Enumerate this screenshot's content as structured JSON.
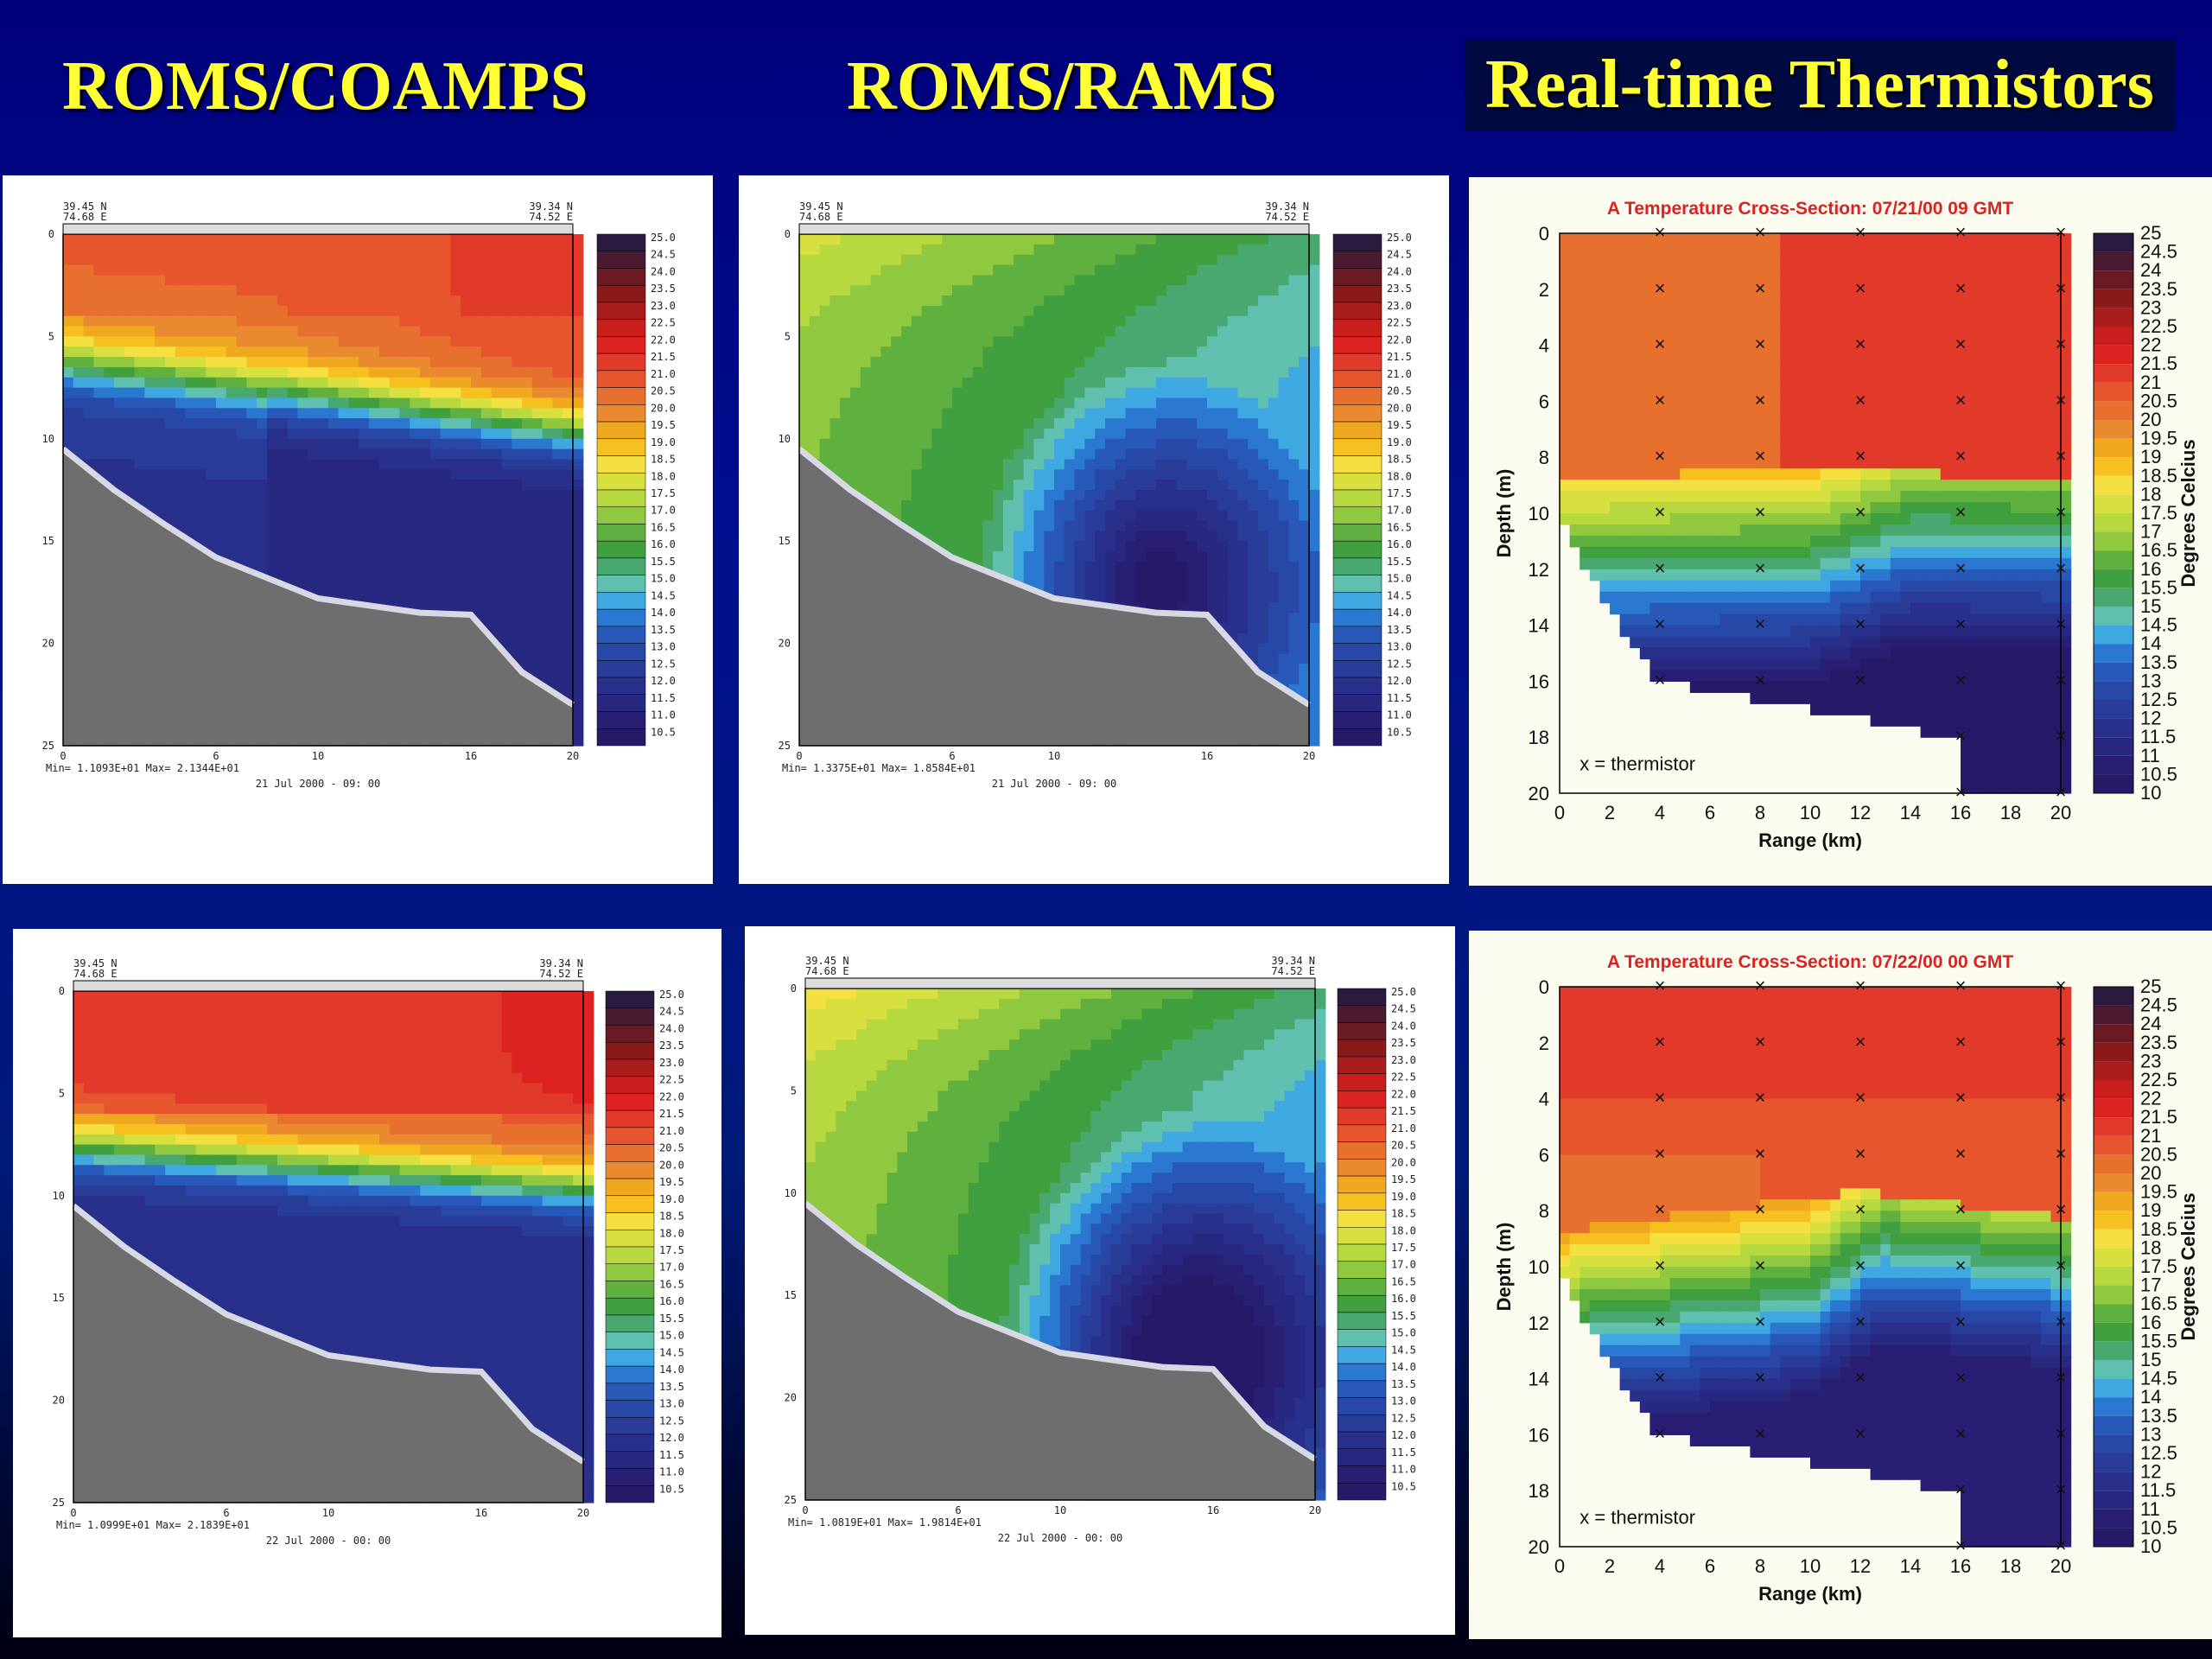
{
  "headers": [
    "ROMS/COAMPS",
    "ROMS/RAMS",
    "Real-time Thermistors"
  ],
  "model_colorbar": [
    "25.0",
    "24.5",
    "24.0",
    "23.5",
    "23.0",
    "22.5",
    "22.0",
    "21.5",
    "21.0",
    "20.5",
    "20.0",
    "19.5",
    "19.0",
    "18.5",
    "18.0",
    "17.5",
    "17.0",
    "16.5",
    "16.0",
    "15.5",
    "15.0",
    "14.5",
    "14.0",
    "13.5",
    "13.0",
    "12.5",
    "12.0",
    "11.5",
    "11.0",
    "10.5"
  ],
  "thermo_colorbar": [
    "25",
    "24.5",
    "24",
    "23.5",
    "23",
    "22.5",
    "22",
    "21.5",
    "21",
    "20.5",
    "20",
    "19.5",
    "19",
    "18.5",
    "18",
    "17.5",
    "17",
    "16.5",
    "16",
    "15.5",
    "15",
    "14.5",
    "14",
    "13.5",
    "13",
    "12.5",
    "12",
    "11.5",
    "11",
    "10.5",
    "10"
  ],
  "colors": {
    "palette": [
      "#2a1a40",
      "#4a1a30",
      "#6a1a22",
      "#8a1a1a",
      "#a81c1c",
      "#c81e1e",
      "#dd2222",
      "#e23a2a",
      "#e6552e",
      "#e8702f",
      "#ea8a30",
      "#f0a820",
      "#f5c020",
      "#f4e040",
      "#d8e040",
      "#b8d840",
      "#90c840",
      "#60b040",
      "#40a040",
      "#48a870",
      "#60c0b0",
      "#40a8e0",
      "#2a78d0",
      "#2858b8",
      "#2848a8",
      "#283c98",
      "#28308c",
      "#282880",
      "#281e74",
      "#281868"
    ],
    "ground": "#6e6e6e",
    "ground_edge": "#d8d8e4",
    "heading": "#ffff33",
    "thermo_title": "#dd2222"
  },
  "chart_data": [
    {
      "type": "heatmap",
      "model": "ROMS/COAMPS",
      "date": "21 Jul 2000 - 09: 00",
      "corner_left": "39.45 N\n74.68 E",
      "corner_right": "39.34 N\n74.52 E",
      "stats": "Min= 1.1093E+01  Max= 2.1344E+01",
      "x": [
        0,
        6,
        10,
        16,
        20
      ],
      "y": [
        0,
        5,
        10,
        15,
        20,
        25
      ],
      "bottom_depth": [
        [
          0,
          10.5
        ],
        [
          2,
          12.5
        ],
        [
          4,
          14.2
        ],
        [
          6,
          15.8
        ],
        [
          10,
          17.8
        ],
        [
          14,
          18.5
        ],
        [
          16,
          18.6
        ],
        [
          18,
          21.4
        ],
        [
          20,
          23
        ]
      ]
    },
    {
      "type": "heatmap",
      "model": "ROMS/RAMS",
      "date": "21 Jul 2000 - 09: 00",
      "corner_left": "39.45 N\n74.68 E",
      "corner_right": "39.34 N\n74.52 E",
      "stats": "Min= 1.3375E+01  Max= 1.8584E+01",
      "x": [
        0,
        6,
        10,
        16,
        20
      ],
      "y": [
        0,
        5,
        10,
        15,
        20,
        25
      ],
      "bottom_depth": [
        [
          0,
          10.5
        ],
        [
          2,
          12.5
        ],
        [
          4,
          14.2
        ],
        [
          6,
          15.8
        ],
        [
          10,
          17.8
        ],
        [
          14,
          18.5
        ],
        [
          16,
          18.6
        ],
        [
          18,
          21.4
        ],
        [
          20,
          23
        ]
      ]
    },
    {
      "type": "heatmap",
      "title": "A Temperature Cross-Section: 07/21/00 09 GMT",
      "xlabel": "Range (km)",
      "ylabel": "Depth (m)",
      "colorbar_label": "Degrees Celcius",
      "legend": "x = thermistor",
      "x": [
        0,
        2,
        4,
        6,
        8,
        10,
        12,
        14,
        16,
        18,
        20
      ],
      "y": [
        0,
        2,
        4,
        6,
        8,
        10,
        12,
        14,
        16,
        18,
        20
      ],
      "xlim": [
        0,
        20
      ],
      "ylim": [
        0,
        20
      ]
    },
    {
      "type": "heatmap",
      "model": "ROMS/COAMPS",
      "date": "22 Jul 2000 - 00: 00",
      "corner_left": "39.45 N\n74.68 E",
      "corner_right": "39.34 N\n74.52 E",
      "stats": "Min= 1.0999E+01  Max= 2.1839E+01",
      "x": [
        0,
        6,
        10,
        16,
        20
      ],
      "y": [
        0,
        5,
        10,
        15,
        20,
        25
      ],
      "bottom_depth": [
        [
          0,
          10.5
        ],
        [
          2,
          12.5
        ],
        [
          4,
          14.2
        ],
        [
          6,
          15.8
        ],
        [
          10,
          17.8
        ],
        [
          14,
          18.5
        ],
        [
          16,
          18.6
        ],
        [
          18,
          21.4
        ],
        [
          20,
          23
        ]
      ]
    },
    {
      "type": "heatmap",
      "model": "ROMS/RAMS",
      "date": "22 Jul 2000 - 00: 00",
      "corner_left": "39.45 N\n74.68 E",
      "corner_right": "39.34 N\n74.52 E",
      "stats": "Min= 1.0819E+01  Max= 1.9814E+01",
      "x": [
        0,
        6,
        10,
        16,
        20
      ],
      "y": [
        0,
        5,
        10,
        15,
        20,
        25
      ],
      "bottom_depth": [
        [
          0,
          10.5
        ],
        [
          2,
          12.5
        ],
        [
          4,
          14.2
        ],
        [
          6,
          15.8
        ],
        [
          10,
          17.8
        ],
        [
          14,
          18.5
        ],
        [
          16,
          18.6
        ],
        [
          18,
          21.4
        ],
        [
          20,
          23
        ]
      ]
    },
    {
      "type": "heatmap",
      "title": "A Temperature Cross-Section: 07/22/00 00 GMT",
      "xlabel": "Range (km)",
      "ylabel": "Depth (m)",
      "colorbar_label": "Degrees Celcius",
      "legend": "x = thermistor",
      "x": [
        0,
        2,
        4,
        6,
        8,
        10,
        12,
        14,
        16,
        18,
        20
      ],
      "y": [
        0,
        2,
        4,
        6,
        8,
        10,
        12,
        14,
        16,
        18,
        20
      ],
      "xlim": [
        0,
        20
      ],
      "ylim": [
        0,
        20
      ]
    }
  ]
}
